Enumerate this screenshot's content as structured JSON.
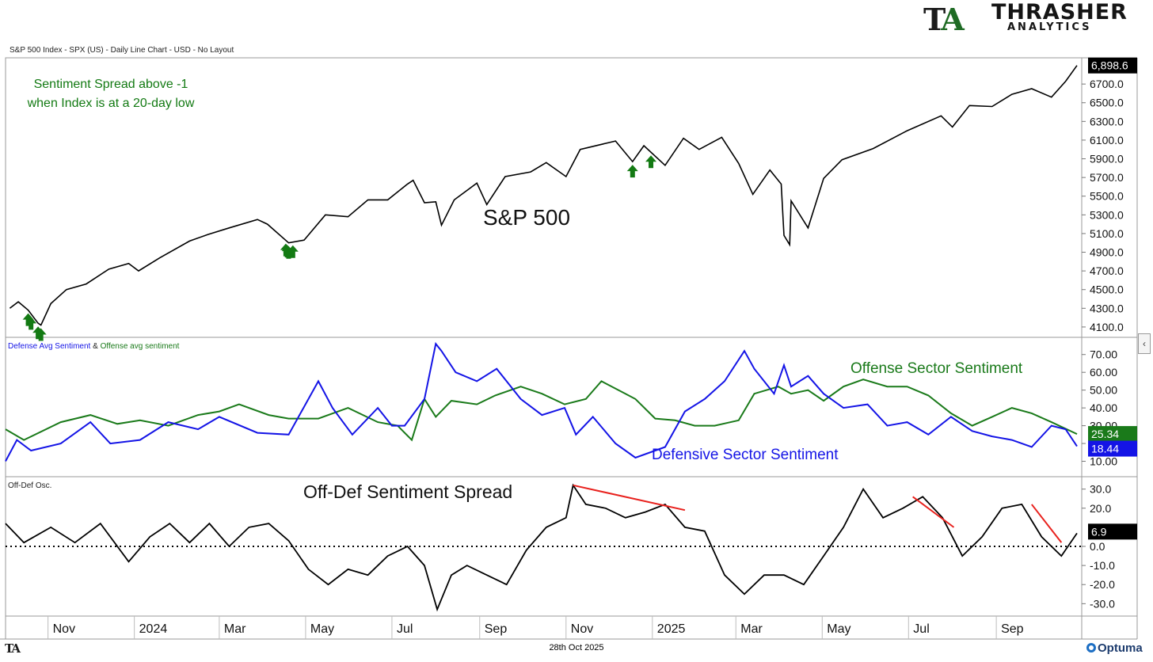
{
  "brand": {
    "logo_mark": "TA",
    "logo_name": "THRASHER",
    "logo_sub": "ANALYTICS"
  },
  "footer": {
    "date": "28th Oct 2025",
    "left_logo": "TA",
    "vendor": "Optuma"
  },
  "colors": {
    "price_line": "#000000",
    "arrow": "#137a13",
    "defense": "#1414e6",
    "offense": "#1a7a1a",
    "trendline": "#e8211d",
    "last_value_bg": "#000000"
  },
  "chart_data": [
    {
      "type": "line",
      "panel": "price",
      "caption": "S&P 500 Index - SPX (US) - Daily Line Chart - USD - No Layout",
      "annotation": "S&P 500",
      "note_lines": [
        "Sentiment Spread above -1",
        "when Index is at a 20-day low"
      ],
      "y_ticks": [
        "6700.0",
        "6500.0",
        "6300.0",
        "6100.0",
        "5900.0",
        "5700.0",
        "5500.0",
        "5300.0",
        "5100.0",
        "4900.0",
        "4700.0",
        "4500.0",
        "4300.0",
        "4100.0"
      ],
      "ylim": [
        4040,
        6930
      ],
      "last_value": 6898.6,
      "last_value_label": "6,898.6",
      "series": [
        {
          "x": [
            "2023-10-05",
            "2023-10-11",
            "2023-10-18",
            "2023-10-25",
            "2023-10-27",
            "2023-11-03",
            "2023-11-14",
            "2023-11-28",
            "2023-12-14",
            "2023-12-28",
            "2024-01-04",
            "2024-01-19",
            "2024-02-09",
            "2024-02-22",
            "2024-03-08",
            "2024-03-28",
            "2024-04-04",
            "2024-04-19",
            "2024-04-30",
            "2024-05-15",
            "2024-05-31",
            "2024-06-14",
            "2024-06-28",
            "2024-07-12",
            "2024-07-16",
            "2024-07-24",
            "2024-08-01",
            "2024-08-05",
            "2024-08-14",
            "2024-08-30",
            "2024-09-06",
            "2024-09-19",
            "2024-10-07",
            "2024-10-18",
            "2024-11-01",
            "2024-11-11",
            "2024-12-06",
            "2024-12-18",
            "2024-12-26",
            "2025-01-10",
            "2025-01-23",
            "2025-02-03",
            "2025-02-19",
            "2025-03-03",
            "2025-03-13",
            "2025-03-25",
            "2025-04-02",
            "2025-04-04",
            "2025-04-08",
            "2025-04-09",
            "2025-04-21",
            "2025-05-02",
            "2025-05-15",
            "2025-06-06",
            "2025-06-30",
            "2025-07-24",
            "2025-08-01",
            "2025-08-13",
            "2025-08-29",
            "2025-09-12",
            "2025-09-26",
            "2025-10-10",
            "2025-10-20",
            "2025-10-28"
          ],
          "values": [
            4300,
            4370,
            4280,
            4140,
            4120,
            4350,
            4500,
            4560,
            4720,
            4780,
            4700,
            4840,
            5020,
            5090,
            5160,
            5250,
            5200,
            5000,
            5030,
            5300,
            5280,
            5460,
            5460,
            5630,
            5670,
            5430,
            5440,
            5190,
            5460,
            5640,
            5410,
            5710,
            5760,
            5860,
            5710,
            6000,
            6090,
            5870,
            6040,
            5830,
            6120,
            6000,
            6130,
            5850,
            5520,
            5780,
            5630,
            5080,
            4980,
            5450,
            5160,
            5690,
            5890,
            6010,
            6200,
            6360,
            6240,
            6470,
            6460,
            6590,
            6650,
            6560,
            6730,
            6898.6
          ]
        }
      ],
      "signal_dates": [
        "2023-10-18",
        "2023-10-20",
        "2023-10-25",
        "2023-10-27",
        "2024-04-17",
        "2024-04-18",
        "2024-04-19",
        "2024-04-22",
        "2024-12-18",
        "2024-12-31"
      ]
    },
    {
      "type": "line",
      "panel": "sentiment",
      "caption_parts": [
        "Defense Avg Sentiment",
        " & ",
        "Offense avg sentiment"
      ],
      "y_ticks": [
        "70.00",
        "60.00",
        "50.00",
        "40.00",
        "30.00",
        "20.00",
        "10.00"
      ],
      "ylim": [
        4,
        77
      ],
      "series": [
        {
          "name": "Offense Sector Sentiment",
          "last_value_label": "25.34",
          "x": [
            "2023-10-02",
            "2023-10-15",
            "2023-11-10",
            "2023-12-01",
            "2023-12-20",
            "2024-01-05",
            "2024-01-25",
            "2024-02-15",
            "2024-03-01",
            "2024-03-15",
            "2024-04-05",
            "2024-04-19",
            "2024-05-10",
            "2024-05-31",
            "2024-06-21",
            "2024-07-05",
            "2024-07-15",
            "2024-07-24",
            "2024-08-01",
            "2024-08-12",
            "2024-08-30",
            "2024-09-12",
            "2024-09-30",
            "2024-10-15",
            "2024-10-31",
            "2024-11-15",
            "2024-11-26",
            "2024-12-13",
            "2024-12-20",
            "2025-01-03",
            "2025-01-17",
            "2025-01-31",
            "2025-02-14",
            "2025-03-03",
            "2025-03-14",
            "2025-03-31",
            "2025-04-09",
            "2025-04-21",
            "2025-05-02",
            "2025-05-16",
            "2025-05-30",
            "2025-06-16",
            "2025-06-30",
            "2025-07-15",
            "2025-07-31",
            "2025-08-15",
            "2025-08-29",
            "2025-09-12",
            "2025-09-26",
            "2025-10-10",
            "2025-10-28"
          ],
          "values": [
            28,
            22,
            32,
            36,
            31,
            33,
            30,
            36,
            38,
            42,
            36,
            34,
            34,
            40,
            32,
            30,
            22,
            45,
            35,
            44,
            42,
            47,
            52,
            48,
            42,
            45,
            55,
            48,
            45,
            34,
            33,
            30,
            30,
            33,
            48,
            52,
            48,
            50,
            44,
            52,
            56,
            52,
            52,
            47,
            37,
            30,
            35,
            40,
            37,
            32,
            25.34
          ]
        },
        {
          "name": "Defensive Sector Sentiment",
          "last_value_label": "18.44",
          "x": [
            "2023-10-02",
            "2023-10-10",
            "2023-10-20",
            "2023-11-10",
            "2023-12-01",
            "2023-12-15",
            "2024-01-05",
            "2024-01-25",
            "2024-02-15",
            "2024-03-01",
            "2024-03-28",
            "2024-04-19",
            "2024-05-10",
            "2024-05-20",
            "2024-06-03",
            "2024-06-21",
            "2024-07-01",
            "2024-07-10",
            "2024-07-24",
            "2024-08-01",
            "2024-08-05",
            "2024-08-15",
            "2024-08-30",
            "2024-09-13",
            "2024-09-30",
            "2024-10-15",
            "2024-10-31",
            "2024-11-08",
            "2024-11-20",
            "2024-12-06",
            "2024-12-20",
            "2025-01-10",
            "2025-01-24",
            "2025-02-07",
            "2025-02-21",
            "2025-03-07",
            "2025-03-14",
            "2025-03-28",
            "2025-04-04",
            "2025-04-09",
            "2025-04-21",
            "2025-05-02",
            "2025-05-16",
            "2025-06-02",
            "2025-06-16",
            "2025-06-30",
            "2025-07-15",
            "2025-07-31",
            "2025-08-15",
            "2025-08-29",
            "2025-09-12",
            "2025-09-26",
            "2025-10-10",
            "2025-10-20",
            "2025-10-28"
          ],
          "values": [
            10,
            22,
            16,
            20,
            32,
            20,
            22,
            32,
            28,
            35,
            26,
            25,
            55,
            40,
            25,
            40,
            30,
            30,
            45,
            76,
            72,
            60,
            55,
            62,
            45,
            36,
            40,
            25,
            35,
            20,
            12,
            18,
            38,
            45,
            55,
            72,
            62,
            48,
            64,
            52,
            58,
            48,
            40,
            42,
            30,
            32,
            25,
            35,
            27,
            24,
            22,
            18,
            30,
            28,
            18.44
          ]
        }
      ]
    },
    {
      "type": "line",
      "panel": "spread",
      "caption": "Off-Def Osc.",
      "annotation": "Off-Def Sentiment Spread",
      "y_ticks": [
        "30.0",
        "20.0",
        "0.0",
        "-10.0",
        "-20.0",
        "-30.0"
      ],
      "ylim": [
        -34,
        34
      ],
      "zero_line": "dotted",
      "last_value_label": "6.9",
      "series": [
        {
          "x": [
            "2023-10-02",
            "2023-10-15",
            "2023-11-03",
            "2023-11-20",
            "2023-12-08",
            "2023-12-28",
            "2024-01-12",
            "2024-01-26",
            "2024-02-09",
            "2024-02-23",
            "2024-03-08",
            "2024-03-22",
            "2024-04-05",
            "2024-04-19",
            "2024-05-03",
            "2024-05-17",
            "2024-05-31",
            "2024-06-14",
            "2024-06-28",
            "2024-07-12",
            "2024-07-24",
            "2024-08-02",
            "2024-08-12",
            "2024-08-23",
            "2024-09-06",
            "2024-09-20",
            "2024-10-04",
            "2024-10-18",
            "2024-11-01",
            "2024-11-06",
            "2024-11-15",
            "2024-11-29",
            "2024-12-13",
            "2024-12-27",
            "2025-01-10",
            "2025-01-24",
            "2025-02-07",
            "2025-02-21",
            "2025-03-07",
            "2025-03-21",
            "2025-04-04",
            "2025-04-18",
            "2025-05-02",
            "2025-05-16",
            "2025-05-30",
            "2025-06-13",
            "2025-06-27",
            "2025-07-11",
            "2025-07-25",
            "2025-08-08",
            "2025-08-22",
            "2025-09-05",
            "2025-09-19",
            "2025-10-03",
            "2025-10-17",
            "2025-10-28"
          ],
          "values": [
            12,
            2,
            10,
            2,
            12,
            -8,
            5,
            12,
            2,
            12,
            0,
            10,
            12,
            3,
            -12,
            -20,
            -12,
            -15,
            -5,
            0,
            -10,
            -33,
            -15,
            -10,
            -15,
            -20,
            -2,
            10,
            15,
            32,
            22,
            20,
            15,
            18,
            22,
            10,
            8,
            -15,
            -25,
            -15,
            -15,
            -20,
            -5,
            10,
            30,
            15,
            20,
            26,
            15,
            -5,
            5,
            20,
            22,
            5,
            -5,
            6.9
          ]
        }
      ],
      "trendlines": [
        {
          "from": [
            "2024-11-06",
            32
          ],
          "to": [
            "2025-01-24",
            19
          ]
        },
        {
          "from": [
            "2025-07-04",
            26
          ],
          "to": [
            "2025-08-02",
            10
          ]
        },
        {
          "from": [
            "2025-09-26",
            22
          ],
          "to": [
            "2025-10-17",
            2
          ]
        }
      ]
    }
  ],
  "x_axis": {
    "ticks": [
      {
        "label": "Nov",
        "date": "2023-11-01"
      },
      {
        "label": "2024",
        "date": "2024-01-01"
      },
      {
        "label": "Mar",
        "date": "2024-03-01"
      },
      {
        "label": "May",
        "date": "2024-05-01"
      },
      {
        "label": "Jul",
        "date": "2024-07-01"
      },
      {
        "label": "Sep",
        "date": "2024-09-01"
      },
      {
        "label": "Nov",
        "date": "2024-11-01"
      },
      {
        "label": "2025",
        "date": "2025-01-01"
      },
      {
        "label": "Mar",
        "date": "2025-03-01"
      },
      {
        "label": "May",
        "date": "2025-05-01"
      },
      {
        "label": "Jul",
        "date": "2025-07-01"
      },
      {
        "label": "Sep",
        "date": "2025-09-01"
      }
    ]
  }
}
